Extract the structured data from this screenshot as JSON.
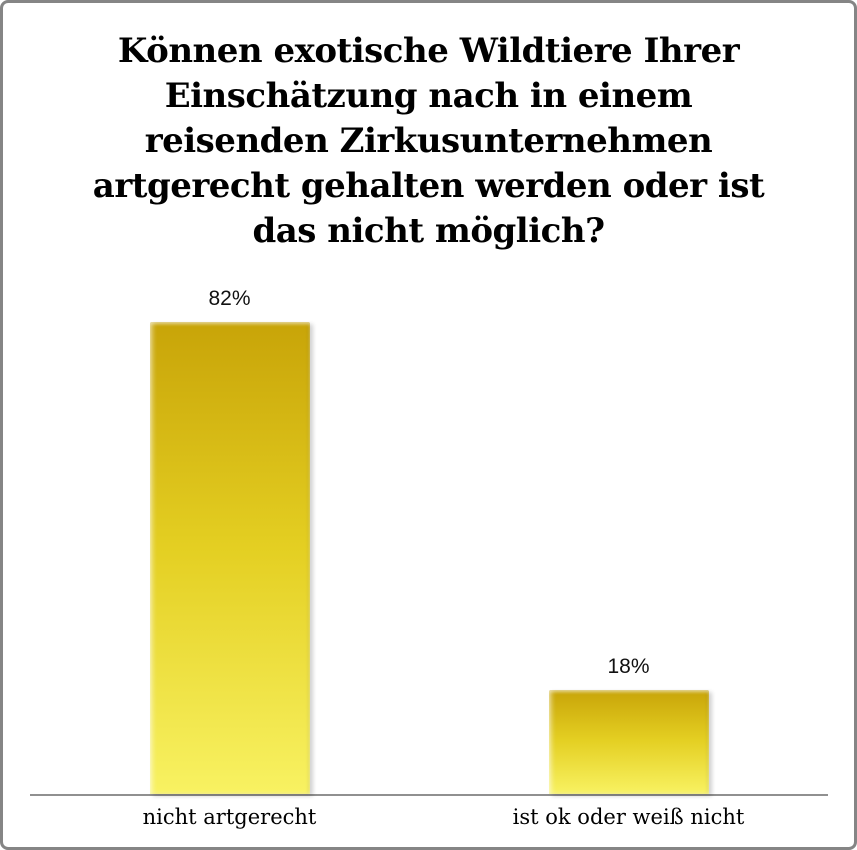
{
  "chart_data": {
    "type": "bar",
    "title": "Können exotische Wildtiere Ihrer\nEinschätzung nach in einem\nreisenden Zirkusunternehmen\nartgerecht gehalten werden oder ist\ndas nicht möglich?",
    "categories": [
      "nicht artgerecht",
      "ist ok oder weiß nicht"
    ],
    "values": [
      82,
      18
    ],
    "value_labels": [
      "82%",
      "18%"
    ],
    "unit": "%",
    "ylim": [
      0,
      82
    ],
    "grid": false,
    "legend": false,
    "bar_colors": {
      "top": "#C8A408",
      "mid": "#E4CF22",
      "bottom": "#F8F262"
    },
    "axis_color": "#909090",
    "frame_border_color": "#858585",
    "title_color": "#000000"
  }
}
